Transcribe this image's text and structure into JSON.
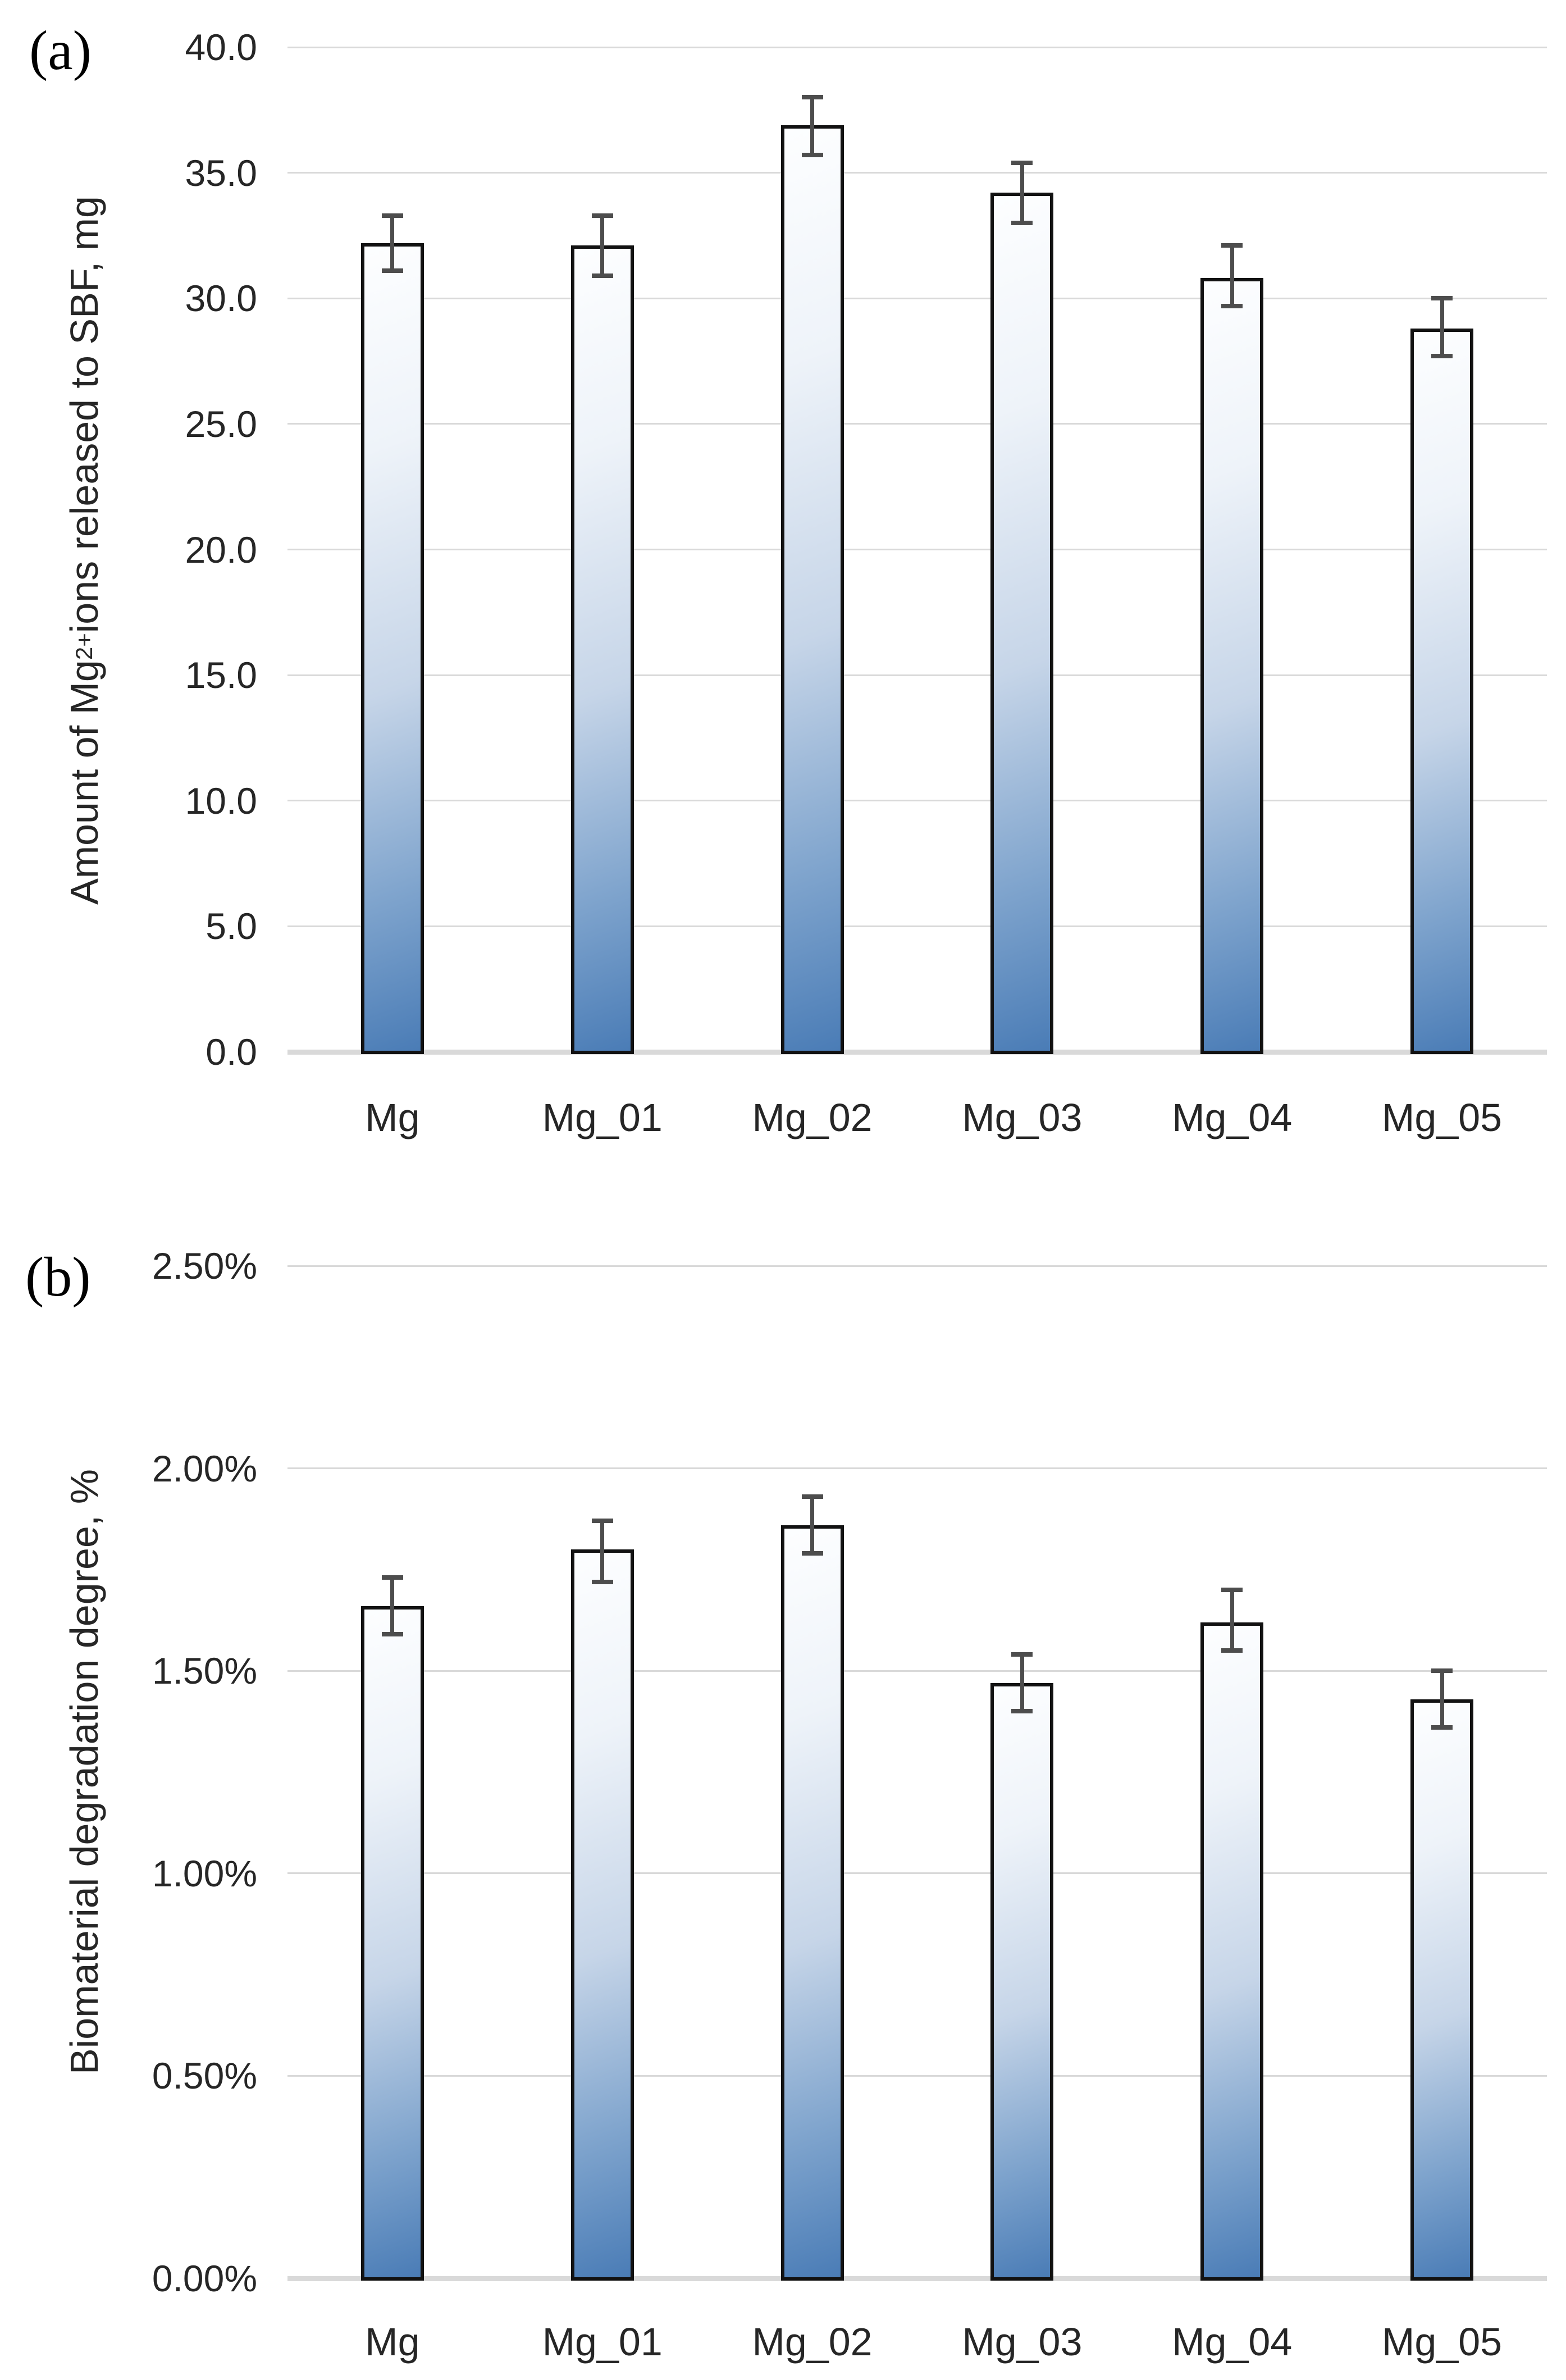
{
  "figure": {
    "background": "#ffffff",
    "panels": [
      {
        "label": "(a)",
        "y_title_pre": "Amount of Mg",
        "y_title_sup": "2+",
        "y_title_post": " ions released to SBF, mg"
      },
      {
        "label": "(b)",
        "y_title_pre": "Biomaterial degradation degree, %",
        "y_title_sup": "",
        "y_title_post": ""
      }
    ]
  },
  "colors": {
    "bar_gradient_light": "#fdfeff",
    "bar_gradient_dark": "#4a7cb6",
    "bar_border": "#121212",
    "gridline": "#d9d9d9",
    "axis_line": "#d9d9d9",
    "error_bar": "#4d4d4d",
    "text": "#262626"
  },
  "chart_data": [
    {
      "type": "bar",
      "panel": "(a)",
      "title": "",
      "xlabel": "",
      "ylabel": "Amount of Mg2+ ions released to SBF, mg",
      "categories": [
        "Mg",
        "Mg_01",
        "Mg_02",
        "Mg_03",
        "Mg_04",
        "Mg_05"
      ],
      "values": [
        32.2,
        32.1,
        36.9,
        34.2,
        30.8,
        28.8
      ],
      "error_plus": [
        1.1,
        1.2,
        1.1,
        1.2,
        1.3,
        1.2
      ],
      "error_minus": [
        1.1,
        1.2,
        1.2,
        1.2,
        1.1,
        1.1
      ],
      "yticks": [
        {
          "label": "40.0",
          "v": 40
        },
        {
          "label": "35.0",
          "v": 35
        },
        {
          "label": "30.0",
          "v": 30
        },
        {
          "label": "25.0",
          "v": 25
        },
        {
          "label": "20.0",
          "v": 20
        },
        {
          "label": "15.0",
          "v": 15
        },
        {
          "label": "10.0",
          "v": 10
        },
        {
          "label": "5.0",
          "v": 5
        },
        {
          "label": "0.0",
          "v": 0
        }
      ],
      "ylim": [
        0,
        40
      ],
      "grid": true,
      "legend": false
    },
    {
      "type": "bar",
      "panel": "(b)",
      "title": "",
      "xlabel": "",
      "ylabel": "Biomaterial degradation degree, %",
      "categories": [
        "Mg",
        "Mg_01",
        "Mg_02",
        "Mg_03",
        "Mg_04",
        "Mg_05"
      ],
      "values": [
        1.66,
        1.8,
        1.86,
        1.47,
        1.62,
        1.43
      ],
      "error_plus": [
        0.07,
        0.07,
        0.07,
        0.07,
        0.08,
        0.07
      ],
      "error_minus": [
        0.07,
        0.08,
        0.07,
        0.07,
        0.07,
        0.07
      ],
      "yticks": [
        {
          "label": "2.50%",
          "v": 2.5
        },
        {
          "label": "2.00%",
          "v": 2.0
        },
        {
          "label": "1.50%",
          "v": 1.5
        },
        {
          "label": "1.00%",
          "v": 1.0
        },
        {
          "label": "0.50%",
          "v": 0.5
        },
        {
          "label": "0.00%",
          "v": 0.0
        }
      ],
      "ylim": [
        0,
        2.5
      ],
      "grid": true,
      "legend": false
    }
  ]
}
